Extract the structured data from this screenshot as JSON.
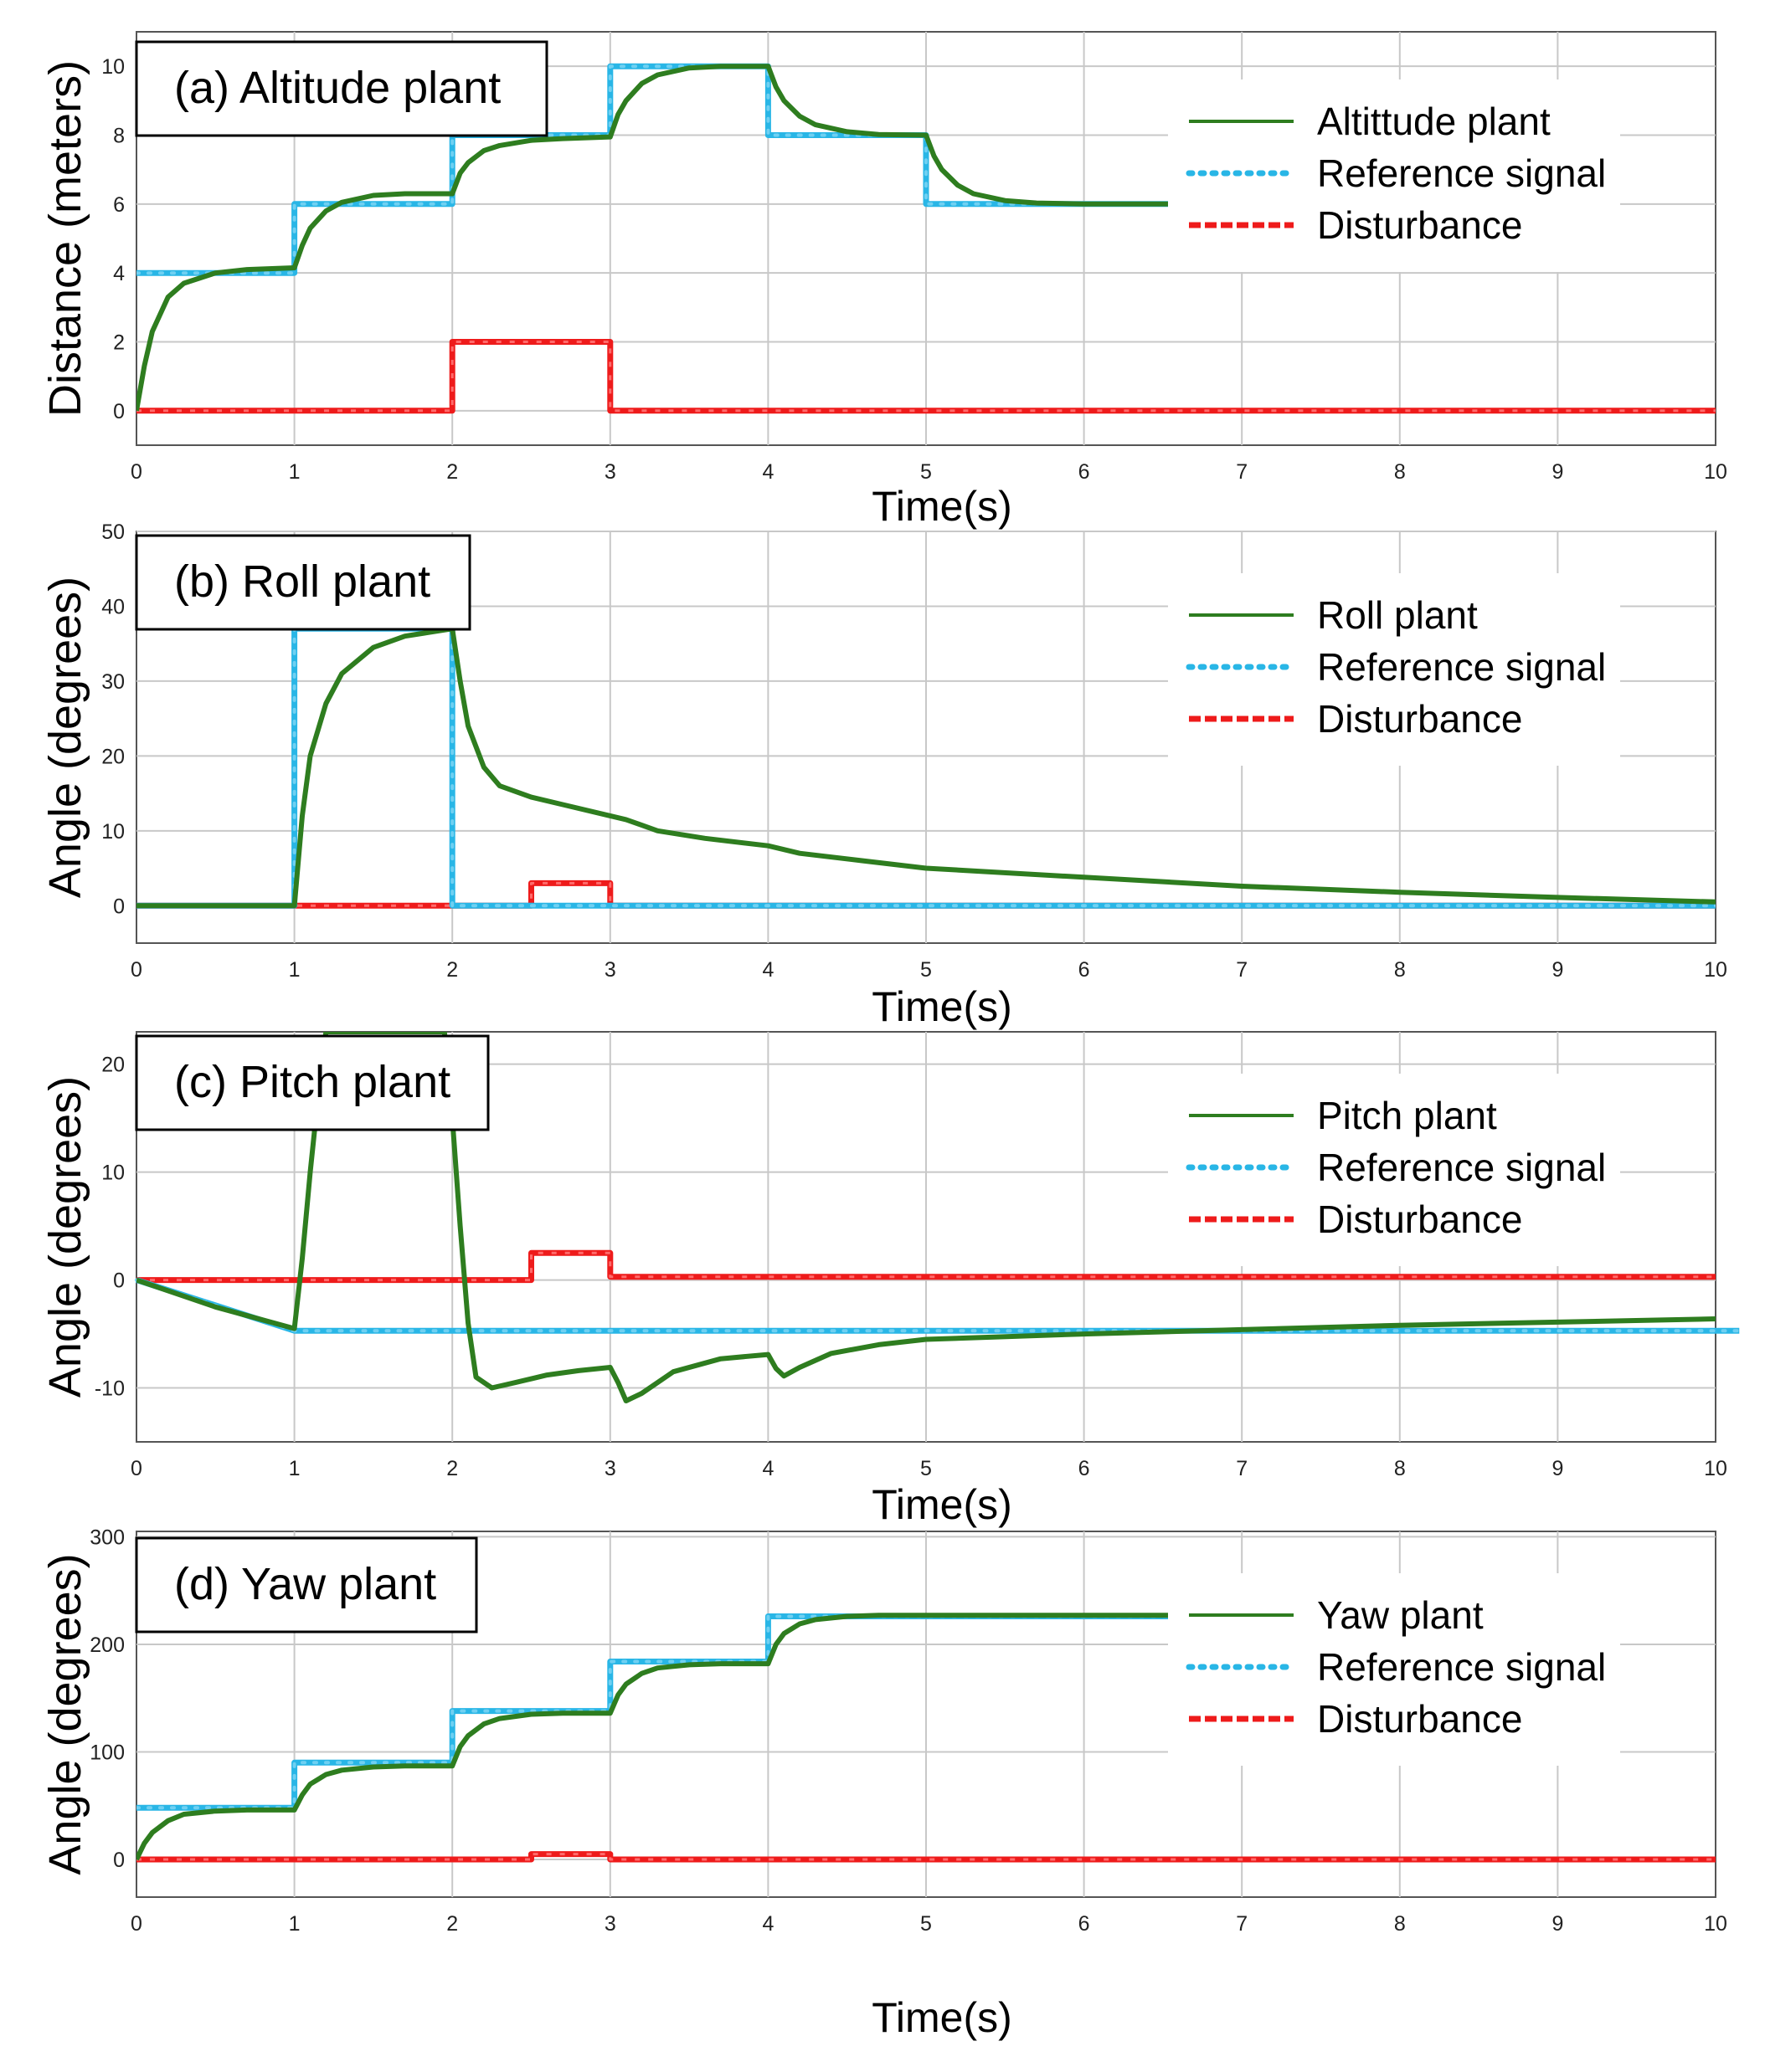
{
  "figure_xlabel": "Time(s)",
  "colors": {
    "plant": "#2e7d1f",
    "reference": "#29b6e6",
    "disturbance": "#ee1b1b",
    "grid": "#c8c8c8",
    "axes": "#555555"
  },
  "chart_data": [
    {
      "type": "line",
      "title": "(a) Altitude plant",
      "xlabel": "Time(s)",
      "ylabel": "Distance (meters)",
      "xlim": [
        0,
        10
      ],
      "ylim": [
        -1,
        11
      ],
      "xticks": [
        0,
        1,
        2,
        3,
        4,
        5,
        6,
        7,
        8,
        9,
        10
      ],
      "yticks": [
        0,
        2,
        4,
        6,
        8,
        10
      ],
      "grid": true,
      "legend_position": "top-right",
      "legend_labels": [
        "Altittude plant",
        "Reference signal",
        "Disturbance"
      ],
      "series": [
        {
          "name": "Altittude plant",
          "x": [
            0,
            0.05,
            0.1,
            0.2,
            0.3,
            0.5,
            0.7,
            1.0,
            1.05,
            1.1,
            1.2,
            1.3,
            1.5,
            1.7,
            2.0,
            2.05,
            2.1,
            2.2,
            2.3,
            2.5,
            2.7,
            3.0,
            3.05,
            3.1,
            3.2,
            3.3,
            3.5,
            3.7,
            4.0,
            4.05,
            4.1,
            4.2,
            4.3,
            4.5,
            4.7,
            5.0,
            5.05,
            5.1,
            5.2,
            5.3,
            5.5,
            5.7,
            6.0,
            7.25
          ],
          "values": [
            0,
            1.3,
            2.3,
            3.3,
            3.7,
            4.0,
            4.1,
            4.15,
            4.8,
            5.3,
            5.8,
            6.05,
            6.25,
            6.3,
            6.3,
            6.9,
            7.2,
            7.55,
            7.7,
            7.85,
            7.9,
            7.95,
            8.6,
            9.0,
            9.5,
            9.75,
            9.95,
            10.0,
            10.0,
            9.4,
            9.0,
            8.55,
            8.3,
            8.1,
            8.02,
            8.0,
            7.4,
            7.0,
            6.55,
            6.3,
            6.1,
            6.03,
            6.0,
            6.0
          ]
        },
        {
          "name": "Reference signal",
          "x": [
            0,
            1,
            1,
            2,
            2,
            3,
            3,
            4,
            4,
            5,
            5,
            7.25
          ],
          "values": [
            4,
            4,
            6,
            6,
            8,
            8,
            10,
            10,
            8,
            8,
            6,
            6
          ]
        },
        {
          "name": "Disturbance",
          "x": [
            0,
            2,
            2,
            3,
            3,
            10
          ],
          "values": [
            0,
            0,
            2,
            2,
            0,
            0
          ]
        }
      ]
    },
    {
      "type": "line",
      "title": "(b) Roll plant",
      "xlabel": "Time(s)",
      "ylabel": "Angle (degrees)",
      "xlim": [
        0,
        10
      ],
      "ylim": [
        -5,
        50
      ],
      "xticks": [
        0,
        1,
        2,
        3,
        4,
        5,
        6,
        7,
        8,
        9,
        10
      ],
      "yticks": [
        0,
        10,
        20,
        30,
        40,
        50
      ],
      "grid": true,
      "legend_position": "top-right",
      "legend_labels": [
        "Roll plant",
        "Reference signal",
        "Disturbance"
      ],
      "series": [
        {
          "name": "Roll plant",
          "x": [
            0,
            1.0,
            1.05,
            1.1,
            1.2,
            1.3,
            1.5,
            1.7,
            2.0,
            2.05,
            2.1,
            2.2,
            2.3,
            2.5,
            2.7,
            3.0,
            3.1,
            3.3,
            3.6,
            4.0,
            4.2,
            4.6,
            5.0,
            6.0,
            7.0,
            8.0,
            9.0,
            10.0
          ],
          "values": [
            0,
            0,
            12,
            20,
            27,
            31,
            34.5,
            36,
            37,
            30,
            24,
            18.5,
            16,
            14.5,
            13.5,
            12,
            11.5,
            10,
            9,
            8,
            7,
            6,
            5,
            3.8,
            2.6,
            1.8,
            1.1,
            0.5
          ]
        },
        {
          "name": "Reference signal",
          "x": [
            0,
            1,
            1,
            2,
            2,
            10
          ],
          "values": [
            0,
            0,
            37,
            37,
            0,
            0
          ]
        },
        {
          "name": "Disturbance",
          "x": [
            0,
            2.5,
            2.5,
            3,
            3,
            10
          ],
          "values": [
            0,
            0,
            3,
            3,
            0,
            0
          ]
        }
      ]
    },
    {
      "type": "line",
      "title": "(c) Pitch plant",
      "xlabel": "Time(s)",
      "ylabel": "Angle (degrees)",
      "xlim": [
        0,
        10
      ],
      "ylim": [
        -15,
        23
      ],
      "xticks": [
        0,
        1,
        2,
        3,
        4,
        5,
        6,
        7,
        8,
        9,
        10
      ],
      "yticks": [
        -10,
        0,
        10,
        20
      ],
      "grid": true,
      "legend_position": "top-right",
      "legend_labels": [
        "Pitch plant",
        "Reference signal",
        "Disturbance"
      ],
      "series": [
        {
          "name": "Pitch plant",
          "x": [
            0,
            0.5,
            1.0,
            1.05,
            1.1,
            1.15,
            1.2,
            1.95,
            2.0,
            2.05,
            2.1,
            2.15,
            2.25,
            2.4,
            2.6,
            2.8,
            3.0,
            3.05,
            3.1,
            3.2,
            3.4,
            3.7,
            4.0,
            4.05,
            4.1,
            4.2,
            4.4,
            4.7,
            5.0,
            6.0,
            7.0,
            8.0,
            9.0,
            10.0
          ],
          "values": [
            0,
            -2.5,
            -4.5,
            2,
            10,
            17,
            23,
            23,
            15,
            5,
            -4,
            -9,
            -10,
            -9.5,
            -8.8,
            -8.4,
            -8.1,
            -9.5,
            -11.2,
            -10.5,
            -8.5,
            -7.3,
            -6.9,
            -8.2,
            -8.9,
            -8.1,
            -6.8,
            -6,
            -5.5,
            -5,
            -4.6,
            -4.2,
            -3.9,
            -3.6
          ]
        },
        {
          "name": "Reference signal",
          "x": [
            0,
            1,
            10.15
          ],
          "values": [
            0,
            -4.7,
            -4.7
          ]
        },
        {
          "name": "Disturbance",
          "x": [
            0,
            2.5,
            2.5,
            3,
            3,
            10
          ],
          "values": [
            0,
            0,
            2.5,
            2.5,
            0.3,
            0.3
          ]
        }
      ]
    },
    {
      "type": "line",
      "title": "(d) Yaw plant",
      "xlabel": "Time(s)",
      "ylabel": "Angle (degrees)",
      "xlim": [
        0,
        10
      ],
      "ylim": [
        -35,
        305
      ],
      "xticks": [
        0,
        1,
        2,
        3,
        4,
        5,
        6,
        7,
        8,
        9,
        10
      ],
      "yticks": [
        0,
        100,
        200,
        300
      ],
      "grid": true,
      "legend_position": "top-right",
      "legend_labels": [
        "Yaw plant",
        "Reference signal",
        "Disturbance"
      ],
      "series": [
        {
          "name": "Yaw plant",
          "x": [
            0,
            0.05,
            0.1,
            0.2,
            0.3,
            0.5,
            0.7,
            1.0,
            1.05,
            1.1,
            1.2,
            1.3,
            1.5,
            1.7,
            2.0,
            2.05,
            2.1,
            2.2,
            2.3,
            2.5,
            2.7,
            3.0,
            3.05,
            3.1,
            3.2,
            3.3,
            3.5,
            3.7,
            4.0,
            4.05,
            4.1,
            4.2,
            4.3,
            4.5,
            4.7,
            5.0,
            7.25
          ],
          "values": [
            0,
            15,
            25,
            36,
            42,
            45,
            46,
            46,
            60,
            70,
            79,
            83,
            86,
            87,
            87,
            105,
            115,
            126,
            131,
            135,
            136,
            136,
            153,
            163,
            173,
            178,
            181,
            182,
            182,
            200,
            210,
            219,
            223,
            226,
            227,
            227,
            227
          ]
        },
        {
          "name": "Reference signal",
          "x": [
            0,
            1,
            1,
            2,
            2,
            3,
            3,
            4,
            4,
            7.25
          ],
          "values": [
            48,
            48,
            90,
            90,
            138,
            138,
            184,
            184,
            226,
            226
          ]
        },
        {
          "name": "Disturbance",
          "x": [
            0,
            2.5,
            2.5,
            3,
            3,
            10
          ],
          "values": [
            0,
            0,
            5,
            5,
            0,
            0
          ]
        }
      ]
    }
  ]
}
